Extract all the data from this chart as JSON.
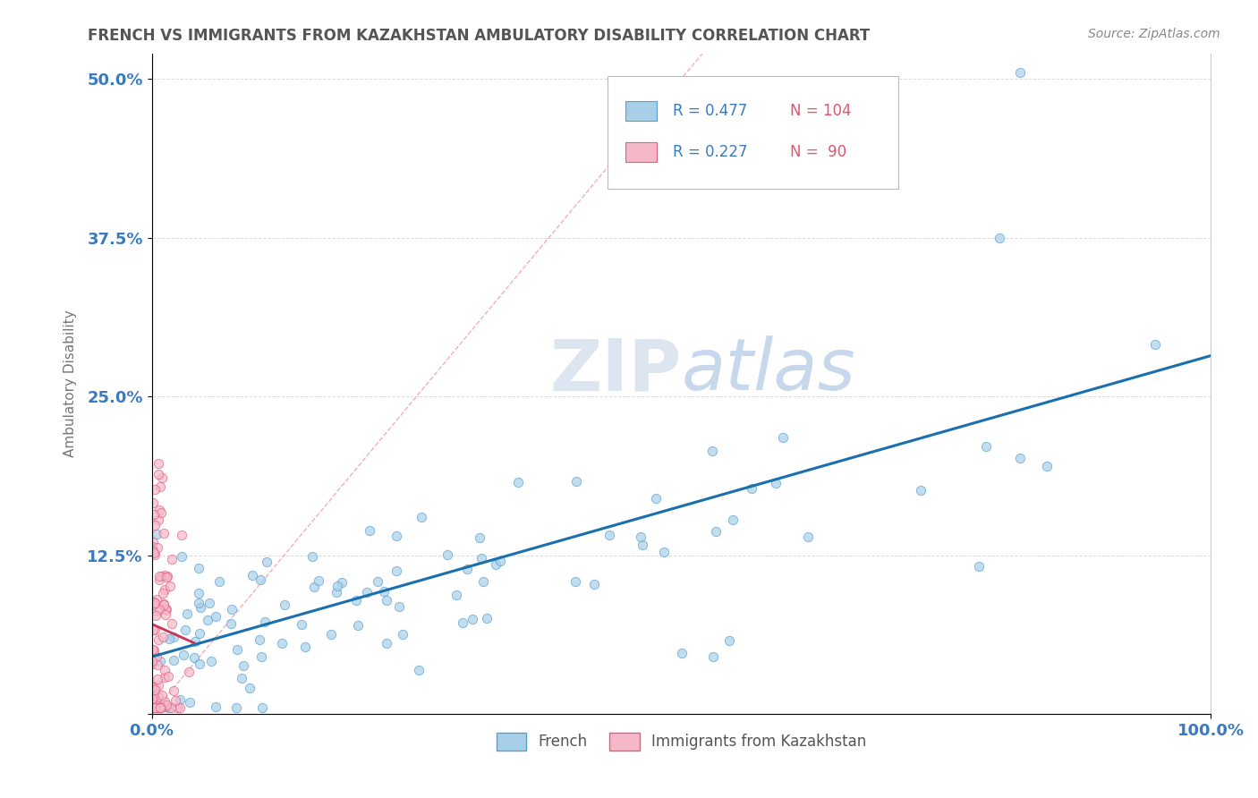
{
  "title": "FRENCH VS IMMIGRANTS FROM KAZAKHSTAN AMBULATORY DISABILITY CORRELATION CHART",
  "source": "Source: ZipAtlas.com",
  "xlabel_blue": "French",
  "xlabel_pink": "Immigrants from Kazakhstan",
  "ylabel": "Ambulatory Disability",
  "R_blue": 0.477,
  "N_blue": 104,
  "R_pink": 0.227,
  "N_pink": 90,
  "blue_color": "#a8cfe8",
  "blue_edge_color": "#5a9fd4",
  "blue_line_color": "#1a6faf",
  "pink_color": "#f5b8c8",
  "pink_edge_color": "#e06080",
  "pink_line_color": "#cc3355",
  "diag_color": "#f0a0b0",
  "title_color": "#555555",
  "tick_color": "#3a7bbf",
  "legend_R_color": "#3a7bbf",
  "legend_N_color": "#e05570",
  "watermark_color": "#dde5f0",
  "background_color": "#ffffff",
  "xlim": [
    0.0,
    1.0
  ],
  "ylim": [
    0.0,
    0.52
  ],
  "x_ticks": [
    0.0,
    1.0
  ],
  "x_tick_labels": [
    "0.0%",
    "100.0%"
  ],
  "y_ticks": [
    0.0,
    0.125,
    0.25,
    0.375,
    0.5
  ],
  "y_tick_labels": [
    "",
    "12.5%",
    "25.0%",
    "37.5%",
    "50.0%"
  ],
  "grid_color": "#cccccc"
}
